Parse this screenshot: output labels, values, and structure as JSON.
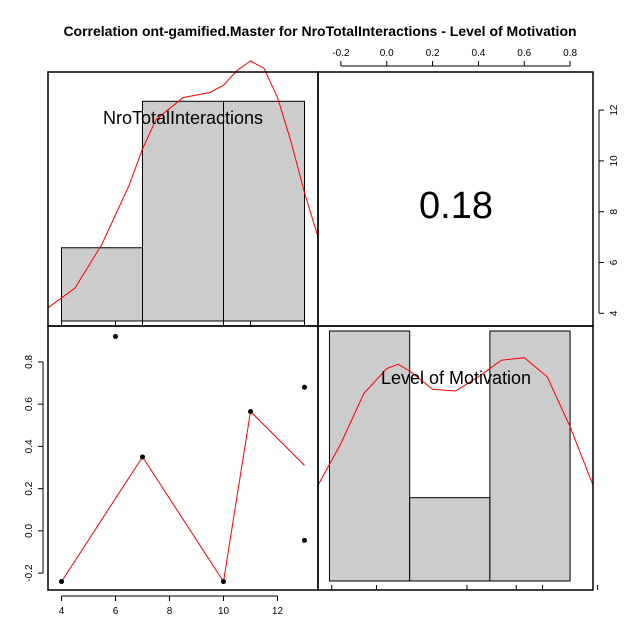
{
  "title": "Correlation ont-gamified.Master for NroTotalInteractions - Level of Motivation",
  "colors": {
    "bar": "#cccccc",
    "line": "#ff0000",
    "point": "#000000",
    "frame": "#000000"
  },
  "chart_data": {
    "type": "scatter",
    "variables": [
      "NroTotalInteractions",
      "Level of Motivation"
    ],
    "correlation": "0.18",
    "scatter": {
      "x": [
        4,
        6,
        7,
        10,
        11,
        13,
        13
      ],
      "y": [
        -0.24,
        0.92,
        0.35,
        -0.24,
        0.565,
        0.68,
        -0.045
      ],
      "smooth_line": {
        "x": [
          4,
          7,
          10,
          11,
          13
        ],
        "y": [
          -0.24,
          0.35,
          -0.24,
          0.565,
          0.31
        ]
      },
      "xlim": [
        3.5,
        13.5
      ],
      "ylim": [
        -0.28,
        0.97
      ],
      "x_ticks": [
        4,
        6,
        8,
        10,
        12
      ],
      "x_tick_labels": [
        "4",
        "6",
        "8",
        "10",
        "12"
      ],
      "y_ticks": [
        -0.2,
        0.0,
        0.2,
        0.4,
        0.6,
        0.8
      ],
      "y_tick_labels": [
        "-0.2",
        "0.0",
        "0.2",
        "0.4",
        "0.6",
        "0.8"
      ]
    },
    "histogram_interactions": {
      "breaks": [
        4,
        7,
        10,
        13
      ],
      "counts": [
        1,
        3,
        3
      ],
      "xlim": [
        3.5,
        13.5
      ],
      "ymax": 3.4,
      "rug": [
        4,
        6,
        7,
        10,
        11,
        13
      ],
      "density_x": [
        3.5,
        4.5,
        5.5,
        6.5,
        7.0,
        7.5,
        8.5,
        9.5,
        10.0,
        10.5,
        11.0,
        11.5,
        12.0,
        12.5,
        13.0,
        13.5
      ],
      "density_y": [
        0.18,
        0.45,
        1.05,
        1.85,
        2.35,
        2.75,
        3.05,
        3.12,
        3.22,
        3.42,
        3.55,
        3.45,
        3.05,
        2.45,
        1.75,
        1.15
      ]
    },
    "histogram_motivation": {
      "breaks": [
        -0.25,
        0.1,
        0.45,
        0.8
      ],
      "counts": [
        3,
        1,
        3
      ],
      "xlim": [
        -0.3,
        0.9
      ],
      "ymax": 3.06,
      "rug": [
        -0.24,
        -0.045,
        0.35,
        0.565,
        0.68,
        0.92
      ],
      "density_x": [
        -0.3,
        -0.2,
        -0.1,
        0.0,
        0.05,
        0.1,
        0.2,
        0.3,
        0.4,
        0.5,
        0.6,
        0.7,
        0.8,
        0.9
      ],
      "density_y": [
        1.15,
        1.65,
        2.25,
        2.55,
        2.6,
        2.52,
        2.3,
        2.28,
        2.45,
        2.65,
        2.68,
        2.45,
        1.85,
        1.15
      ]
    },
    "top_axis": {
      "ticks": [
        -0.2,
        0.0,
        0.2,
        0.4,
        0.6,
        0.8
      ],
      "tick_labels": [
        "-0.2",
        "0.0",
        "0.2",
        "0.4",
        "0.6",
        "0.8"
      ],
      "xlim": [
        -0.3,
        0.9
      ]
    },
    "right_axis": {
      "ticks": [
        4,
        6,
        8,
        10,
        12
      ],
      "tick_labels": [
        "4",
        "6",
        "8",
        "10",
        "12"
      ],
      "ylim": [
        3.5,
        13.5
      ]
    }
  }
}
